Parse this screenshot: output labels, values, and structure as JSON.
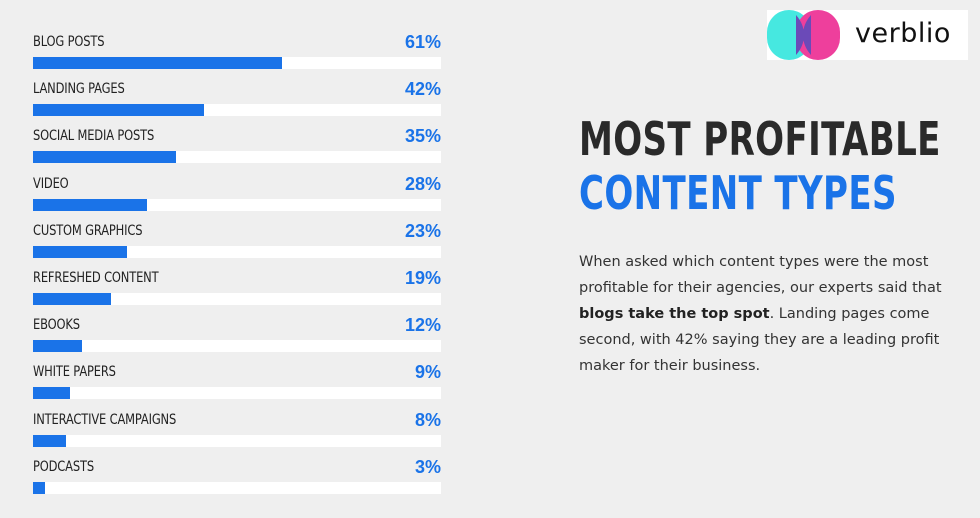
{
  "brand": {
    "logo_text": "verblio",
    "colors": {
      "mark_cyan": "#46e8e0",
      "mark_pink": "#ee3f9c",
      "mark_purple": "#6b4ab8"
    }
  },
  "heading": {
    "line1": "MOST PROFITABLE",
    "line2": "CONTENT TYPES"
  },
  "description": {
    "part1": "When asked which content types were the most profitable for their agencies, our experts said that ",
    "bold": "blogs take the top spot",
    "part2": ". Landing pages come second, with 42% saying they are a leading profit maker for their business."
  },
  "colors": {
    "bar": "#1a73e8",
    "track": "#ffffff",
    "value_text": "#1a73e8"
  },
  "chart_data": {
    "type": "bar",
    "orientation": "horizontal",
    "categories": [
      "BLOG POSTS",
      "LANDING PAGES",
      "SOCIAL MEDIA POSTS",
      "VIDEO",
      "CUSTOM GRAPHICS",
      "REFRESHED CONTENT",
      "EBOOKS",
      "WHITE PAPERS",
      "INTERACTIVE CAMPAIGNS",
      "PODCASTS"
    ],
    "values": [
      61,
      42,
      35,
      28,
      23,
      19,
      12,
      9,
      8,
      3
    ],
    "value_labels": [
      "61%",
      "42%",
      "35%",
      "28%",
      "23%",
      "19%",
      "12%",
      "9%",
      "8%",
      "3%"
    ],
    "xlim": [
      0,
      100
    ],
    "title": "",
    "xlabel": "",
    "ylabel": "",
    "grid": false,
    "legend": "none"
  }
}
